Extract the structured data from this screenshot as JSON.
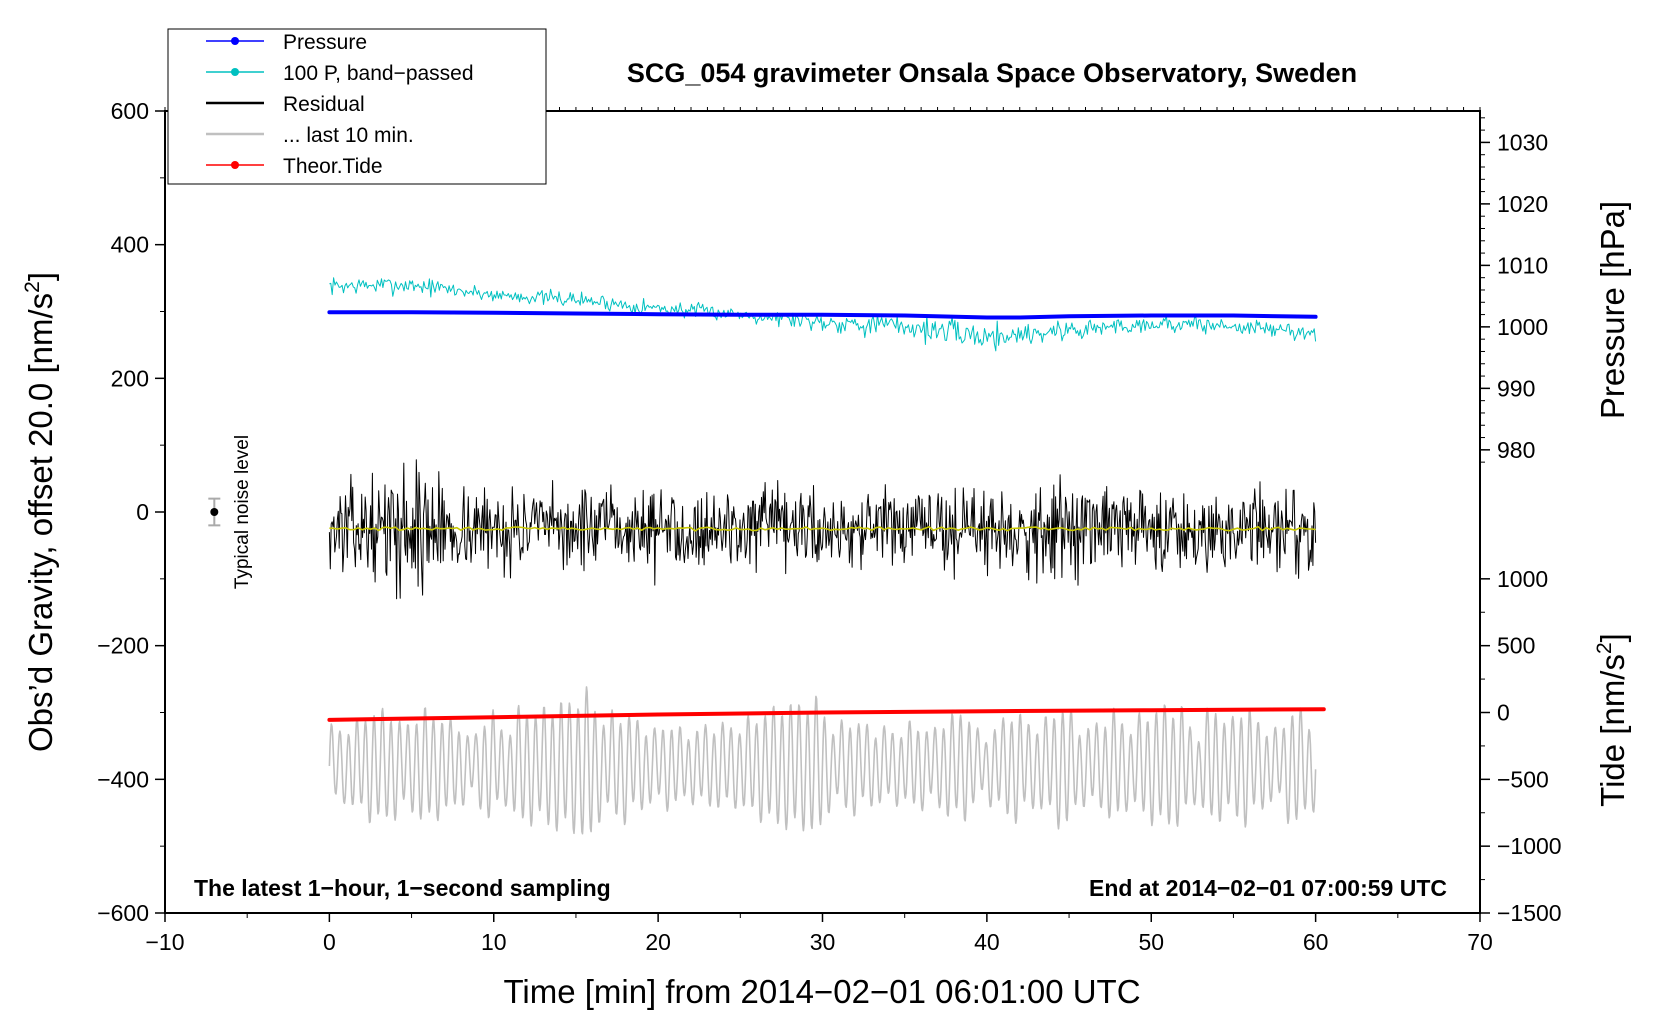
{
  "chart_data": {
    "type": "line",
    "title": "SCG_054 gravimeter Onsala Space Observatory, Sweden",
    "xlabel": "Time [min] from 2014−02−01 06:01:00 UTC",
    "ylabel_left": "Obs’d Gravity, offset 20.0 [nm/s",
    "ylabel_left_sup": "2",
    "ylabel_left_end": "]",
    "ylabel_right_pressure": "Pressure [hPa]",
    "ylabel_right_tide": "Tide [nm/s",
    "ylabel_right_tide_sup": "2",
    "ylabel_right_tide_end": "]",
    "xlim": [
      -10,
      70
    ],
    "ylim": [
      -600,
      600
    ],
    "x_ticks": [
      {
        "value": -10,
        "label": "−10"
      },
      {
        "value": 0,
        "label": "0"
      },
      {
        "value": 10,
        "label": "10"
      },
      {
        "value": 20,
        "label": "20"
      },
      {
        "value": 30,
        "label": "30"
      },
      {
        "value": 40,
        "label": "40"
      },
      {
        "value": 50,
        "label": "50"
      },
      {
        "value": 60,
        "label": "60"
      },
      {
        "value": 70,
        "label": "70"
      }
    ],
    "y_ticks_left": [
      {
        "value": 600,
        "label": "600"
      },
      {
        "value": 400,
        "label": "400"
      },
      {
        "value": 200,
        "label": "200"
      },
      {
        "value": 0,
        "label": "0"
      },
      {
        "value": -200,
        "label": "−200"
      },
      {
        "value": -400,
        "label": "−400"
      },
      {
        "value": -600,
        "label": "−600"
      }
    ],
    "pressure_axis": {
      "mapping": {
        "hpa_a": 1000,
        "grav_a": 277,
        "hpa_b": 1030,
        "grav_b": 553
      },
      "ticks": [
        {
          "value": 1030,
          "label": "1030"
        },
        {
          "value": 1020,
          "label": "1020"
        },
        {
          "value": 1010,
          "label": "1010"
        },
        {
          "value": 1000,
          "label": "1000"
        },
        {
          "value": 990,
          "label": "990"
        },
        {
          "value": 980,
          "label": "980"
        }
      ]
    },
    "tide_axis": {
      "mapping": {
        "tide_a": 0,
        "grav_a": -300,
        "tide_b": 1000,
        "grav_b": -100
      },
      "ticks": [
        {
          "value": 1000,
          "label": "1000"
        },
        {
          "value": 500,
          "label": "500"
        },
        {
          "value": 0,
          "label": "0"
        },
        {
          "value": -500,
          "label": "−500"
        },
        {
          "value": -1000,
          "label": "−1000"
        },
        {
          "value": -1500,
          "label": "−1500"
        }
      ]
    },
    "legend": {
      "position": "top-left",
      "entries": [
        {
          "label": "Pressure",
          "color": "#0000ff",
          "marker": true
        },
        {
          "label": "100 P, band−passed",
          "color": "#00c0c0",
          "marker": true
        },
        {
          "label": "Residual",
          "color": "#000000",
          "marker": false
        },
        {
          "label": "... last 10 min.",
          "color": "#c0c0c0",
          "marker": false
        },
        {
          "label": "Theor.Tide",
          "color": "#ff0000",
          "marker": true
        }
      ]
    },
    "series": [
      {
        "name": "Pressure",
        "color": "#0000ff",
        "style": "thick",
        "x": [
          0,
          5,
          10,
          15,
          20,
          25,
          30,
          35,
          40,
          42,
          45,
          50,
          55,
          60
        ],
        "values": [
          299,
          298.8,
          298,
          297,
          296,
          295,
          295,
          294,
          291,
          291,
          293,
          294,
          294,
          292
        ]
      },
      {
        "name": "100 P, band−passed",
        "color": "#00c0c0",
        "style": "noise",
        "x": [
          0,
          5,
          10,
          15,
          20,
          25,
          30,
          35,
          40,
          45,
          50,
          55,
          60
        ],
        "center": [
          338,
          340,
          325,
          318,
          305,
          296,
          285,
          278,
          262,
          272,
          282,
          278,
          268
        ],
        "amplitude": [
          15,
          16,
          12,
          14,
          14,
          12,
          18,
          22,
          24,
          20,
          15,
          15,
          14
        ],
        "samples": 700,
        "seed": 7
      },
      {
        "name": "Residual",
        "color": "#000000",
        "style": "noise",
        "x": [
          0,
          3,
          6,
          7,
          10,
          20,
          30,
          40,
          43,
          50,
          60
        ],
        "center": [
          -25,
          -25,
          -25,
          -25,
          -25,
          -25,
          -25,
          -25,
          -25,
          -25,
          -25
        ],
        "amplitude": [
          75,
          80,
          130,
          80,
          70,
          70,
          72,
          72,
          85,
          75,
          75
        ],
        "samples": 1100,
        "seed": 13
      },
      {
        "name": "Residual smoothed",
        "color": "#c8c800",
        "style": "noise",
        "x": [
          0,
          60
        ],
        "center": [
          -25,
          -25
        ],
        "amplitude": [
          3,
          3
        ],
        "samples": 240,
        "seed": 29
      },
      {
        "name": "... last 10 min.",
        "color": "#c0c0c0",
        "style": "oscillation",
        "x": [
          0,
          10,
          18,
          20,
          30,
          40,
          50,
          60
        ],
        "center": [
          -380,
          -380,
          -380,
          -380,
          -380,
          -380,
          -380,
          -380
        ],
        "amplitude": [
          65,
          70,
          95,
          60,
          75,
          70,
          78,
          68
        ],
        "cycles": 116,
        "samples": 1500,
        "seed": 3
      },
      {
        "name": "Theor.Tide",
        "color": "#ff0000",
        "style": "thick",
        "x": [
          0,
          10,
          20,
          30,
          40,
          50,
          60.5
        ],
        "values": [
          -311,
          -307,
          -303,
          -300,
          -298,
          -296.5,
          -295
        ]
      }
    ],
    "noise_bar": {
      "label": "Typical noise level",
      "x": -7,
      "center": 0,
      "halfwidth": 20
    },
    "annotations": {
      "bottom_left": "The latest 1−hour, 1−second sampling",
      "bottom_right": "End at 2014−02−01 07:00:59 UTC"
    }
  }
}
